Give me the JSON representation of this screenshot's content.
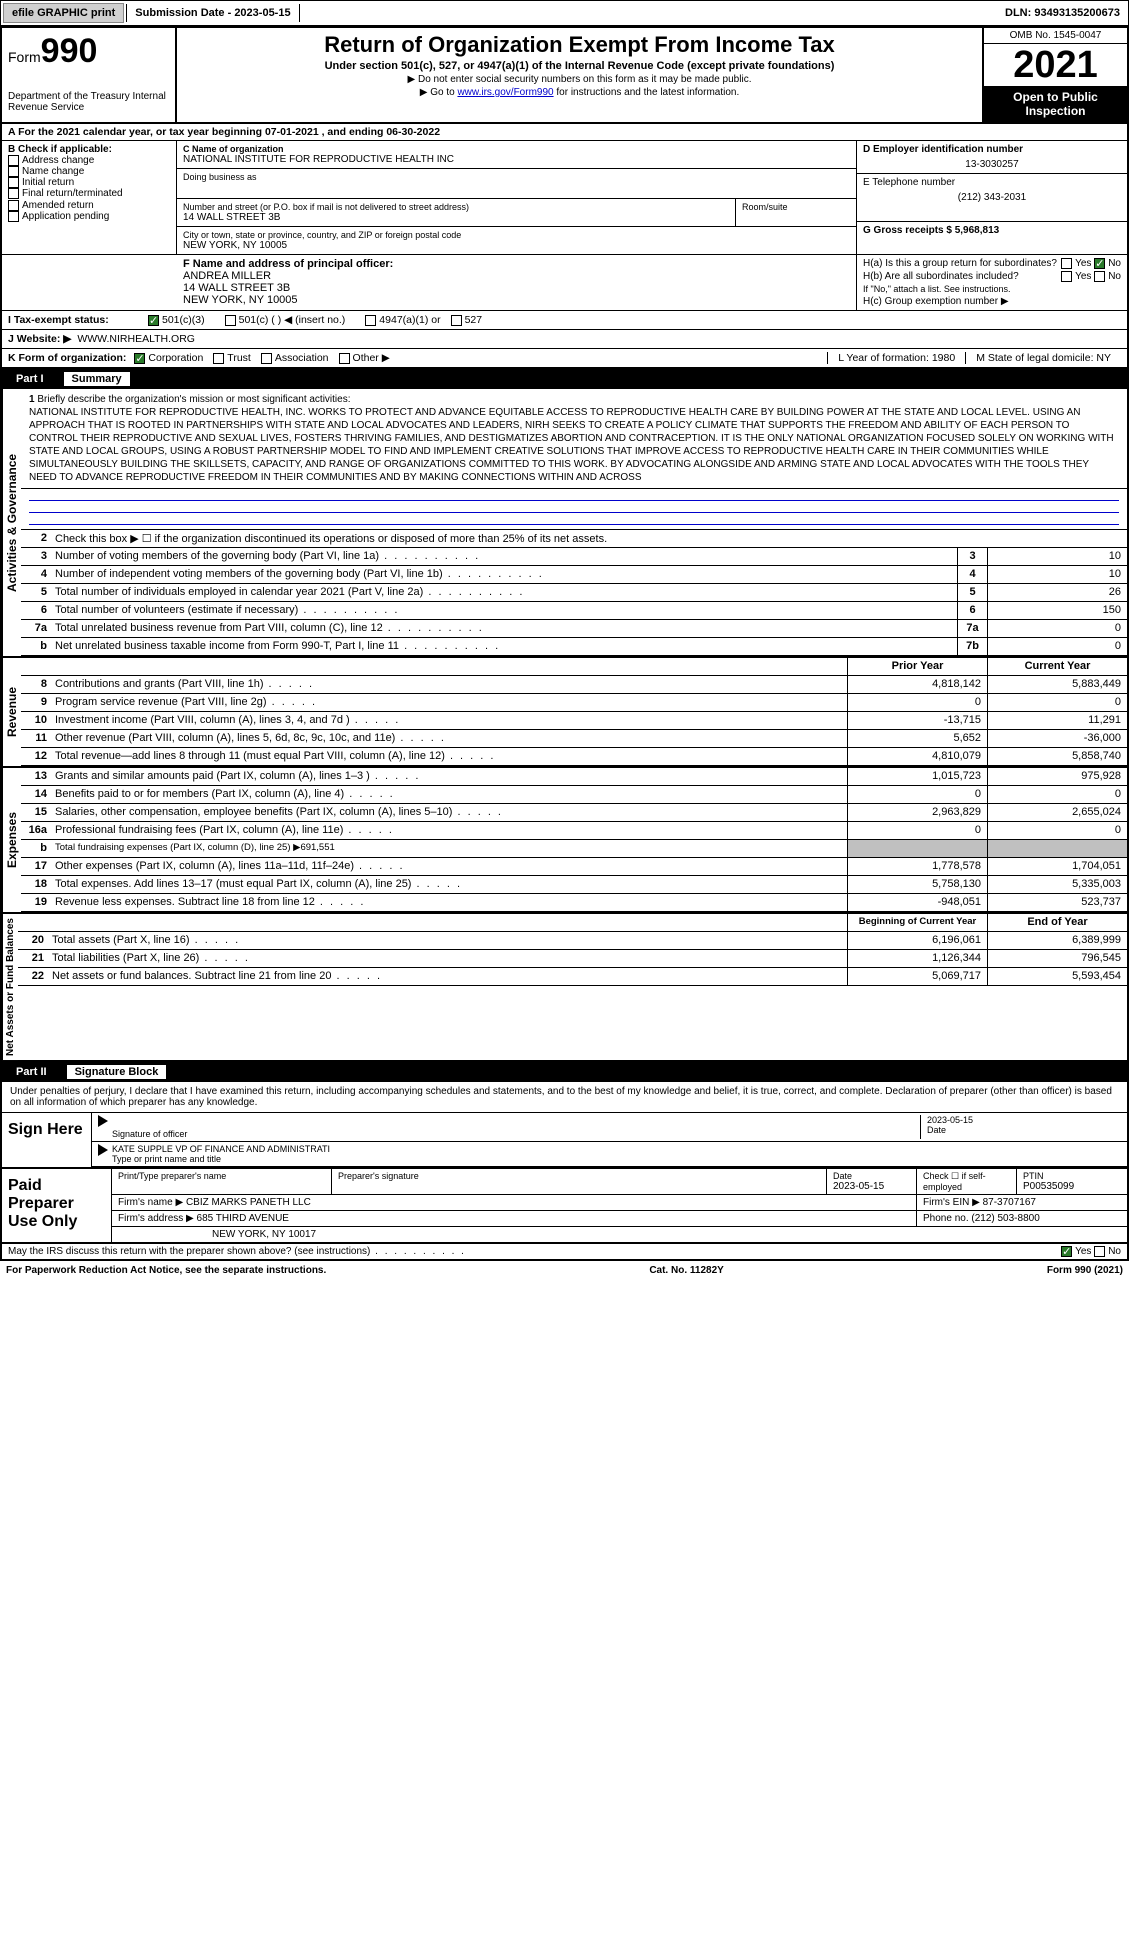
{
  "header": {
    "efile_btn": "efile GRAPHIC print",
    "submission_date_label": "Submission Date - 2023-05-15",
    "dln": "DLN: 93493135200673",
    "form_label": "Form",
    "form_num": "990",
    "title": "Return of Organization Exempt From Income Tax",
    "subtitle": "Under section 501(c), 527, or 4947(a)(1) of the Internal Revenue Code (except private foundations)",
    "note1": "▶ Do not enter social security numbers on this form as it may be made public.",
    "note2_pre": "▶ Go to ",
    "note2_link": "www.irs.gov/Form990",
    "note2_post": " for instructions and the latest information.",
    "omb": "OMB No. 1545-0047",
    "year": "2021",
    "inspection": "Open to Public Inspection",
    "dept": "Department of the Treasury Internal Revenue Service"
  },
  "section_a": {
    "tax_year": "A For the 2021 calendar year, or tax year beginning 07-01-2021   , and ending 06-30-2022",
    "b_label": "B Check if applicable:",
    "b_items": [
      "Address change",
      "Name change",
      "Initial return",
      "Final return/terminated",
      "Amended return",
      "Application pending"
    ],
    "c_label": "C Name of organization",
    "c_name": "NATIONAL INSTITUTE FOR REPRODUCTIVE HEALTH INC",
    "dba_label": "Doing business as",
    "addr_label": "Number and street (or P.O. box if mail is not delivered to street address)",
    "addr": "14 WALL STREET 3B",
    "room_label": "Room/suite",
    "city_label": "City or town, state or province, country, and ZIP or foreign postal code",
    "city": "NEW YORK, NY  10005",
    "d_label": "D Employer identification number",
    "d_ein": "13-3030257",
    "e_label": "E Telephone number",
    "e_phone": "(212) 343-2031",
    "g_label": "G Gross receipts $ 5,968,813",
    "f_label": "F  Name and address of principal officer:",
    "f_name": "ANDREA MILLER",
    "f_addr1": "14 WALL STREET 3B",
    "f_addr2": "NEW YORK, NY  10005",
    "ha_label": "H(a)  Is this a group return for subordinates?",
    "hb_label": "H(b)  Are all subordinates included?",
    "hb_note": "If \"No,\" attach a list. See instructions.",
    "hc_label": "H(c)  Group exemption number ▶",
    "yes": "Yes",
    "no": "No"
  },
  "exempt": {
    "i_label": "I  Tax-exempt status:",
    "opt1": "501(c)(3)",
    "opt2": "501(c) (  ) ◀ (insert no.)",
    "opt3": "4947(a)(1) or",
    "opt4": "527"
  },
  "website": {
    "j_label": "J Website: ▶",
    "url": "WWW.NIRHEALTH.ORG"
  },
  "korg": {
    "k_label": "K Form of organization:",
    "opts": [
      "Corporation",
      "Trust",
      "Association",
      "Other ▶"
    ],
    "l_label": "L Year of formation: 1980",
    "m_label": "M State of legal domicile: NY"
  },
  "part1": {
    "header": "Part I",
    "title": "Summary",
    "side_gov": "Activities & Governance",
    "side_rev": "Revenue",
    "side_exp": "Expenses",
    "side_net": "Net Assets or Fund Balances",
    "line1_label": "1",
    "line1_text": "Briefly describe the organization's mission or most significant activities:",
    "mission": "NATIONAL INSTITUTE FOR REPRODUCTIVE HEALTH, INC. WORKS TO PROTECT AND ADVANCE EQUITABLE ACCESS TO REPRODUCTIVE HEALTH CARE BY BUILDING POWER AT THE STATE AND LOCAL LEVEL. USING AN APPROACH THAT IS ROOTED IN PARTNERSHIPS WITH STATE AND LOCAL ADVOCATES AND LEADERS, NIRH SEEKS TO CREATE A POLICY CLIMATE THAT SUPPORTS THE FREEDOM AND ABILITY OF EACH PERSON TO CONTROL THEIR REPRODUCTIVE AND SEXUAL LIVES, FOSTERS THRIVING FAMILIES, AND DESTIGMATIZES ABORTION AND CONTRACEPTION. IT IS THE ONLY NATIONAL ORGANIZATION FOCUSED SOLELY ON WORKING WITH STATE AND LOCAL GROUPS, USING A ROBUST PARTNERSHIP MODEL TO FIND AND IMPLEMENT CREATIVE SOLUTIONS THAT IMPROVE ACCESS TO REPRODUCTIVE HEALTH CARE IN THEIR COMMUNITIES WHILE SIMULTANEOUSLY BUILDING THE SKILLSETS, CAPACITY, AND RANGE OF ORGANIZATIONS COMMITTED TO THIS WORK. BY ADVOCATING ALONGSIDE AND ARMING STATE AND LOCAL ADVOCATES WITH THE TOOLS THEY NEED TO ADVANCE REPRODUCTIVE FREEDOM IN THEIR COMMUNITIES AND BY MAKING CONNECTIONS WITHIN AND ACROSS",
    "line2": "Check this box ▶ ☐ if the organization discontinued its operations or disposed of more than 25% of its net assets.",
    "rows_gov": [
      {
        "num": "3",
        "text": "Number of voting members of the governing body (Part VI, line 1a)",
        "box": "3",
        "val": "10"
      },
      {
        "num": "4",
        "text": "Number of independent voting members of the governing body (Part VI, line 1b)",
        "box": "4",
        "val": "10"
      },
      {
        "num": "5",
        "text": "Total number of individuals employed in calendar year 2021 (Part V, line 2a)",
        "box": "5",
        "val": "26"
      },
      {
        "num": "6",
        "text": "Total number of volunteers (estimate if necessary)",
        "box": "6",
        "val": "150"
      },
      {
        "num": "7a",
        "text": "Total unrelated business revenue from Part VIII, column (C), line 12",
        "box": "7a",
        "val": "0"
      },
      {
        "num": "b",
        "text": "Net unrelated business taxable income from Form 990-T, Part I, line 11",
        "box": "7b",
        "val": "0"
      }
    ],
    "col_prior": "Prior Year",
    "col_current": "Current Year",
    "rows_rev": [
      {
        "num": "8",
        "text": "Contributions and grants (Part VIII, line 1h)",
        "prior": "4,818,142",
        "curr": "5,883,449"
      },
      {
        "num": "9",
        "text": "Program service revenue (Part VIII, line 2g)",
        "prior": "0",
        "curr": "0"
      },
      {
        "num": "10",
        "text": "Investment income (Part VIII, column (A), lines 3, 4, and 7d )",
        "prior": "-13,715",
        "curr": "11,291"
      },
      {
        "num": "11",
        "text": "Other revenue (Part VIII, column (A), lines 5, 6d, 8c, 9c, 10c, and 11e)",
        "prior": "5,652",
        "curr": "-36,000"
      },
      {
        "num": "12",
        "text": "Total revenue—add lines 8 through 11 (must equal Part VIII, column (A), line 12)",
        "prior": "4,810,079",
        "curr": "5,858,740"
      }
    ],
    "rows_exp": [
      {
        "num": "13",
        "text": "Grants and similar amounts paid (Part IX, column (A), lines 1–3 )",
        "prior": "1,015,723",
        "curr": "975,928"
      },
      {
        "num": "14",
        "text": "Benefits paid to or for members (Part IX, column (A), line 4)",
        "prior": "0",
        "curr": "0"
      },
      {
        "num": "15",
        "text": "Salaries, other compensation, employee benefits (Part IX, column (A), lines 5–10)",
        "prior": "2,963,829",
        "curr": "2,655,024"
      },
      {
        "num": "16a",
        "text": "Professional fundraising fees (Part IX, column (A), line 11e)",
        "prior": "0",
        "curr": "0"
      }
    ],
    "line16b": "Total fundraising expenses (Part IX, column (D), line 25) ▶691,551",
    "rows_exp2": [
      {
        "num": "17",
        "text": "Other expenses (Part IX, column (A), lines 11a–11d, 11f–24e)",
        "prior": "1,778,578",
        "curr": "1,704,051"
      },
      {
        "num": "18",
        "text": "Total expenses. Add lines 13–17 (must equal Part IX, column (A), line 25)",
        "prior": "5,758,130",
        "curr": "5,335,003"
      },
      {
        "num": "19",
        "text": "Revenue less expenses. Subtract line 18 from line 12",
        "prior": "-948,051",
        "curr": "523,737"
      }
    ],
    "col_begin": "Beginning of Current Year",
    "col_end": "End of Year",
    "rows_net": [
      {
        "num": "20",
        "text": "Total assets (Part X, line 16)",
        "prior": "6,196,061",
        "curr": "6,389,999"
      },
      {
        "num": "21",
        "text": "Total liabilities (Part X, line 26)",
        "prior": "1,126,344",
        "curr": "796,545"
      },
      {
        "num": "22",
        "text": "Net assets or fund balances. Subtract line 21 from line 20",
        "prior": "5,069,717",
        "curr": "5,593,454"
      }
    ]
  },
  "part2": {
    "header": "Part II",
    "title": "Signature Block",
    "penalty": "Under penalties of perjury, I declare that I have examined this return, including accompanying schedules and statements, and to the best of my knowledge and belief, it is true, correct, and complete. Declaration of preparer (other than officer) is based on all information of which preparer has any knowledge.",
    "sign_here": "Sign Here",
    "sig_officer": "Signature of officer",
    "sig_date": "2023-05-15",
    "date_label": "Date",
    "officer_name": "KATE SUPPLE VP OF FINANCE AND ADMINISTRATI",
    "type_name": "Type or print name and title",
    "paid_prep": "Paid Preparer Use Only",
    "print_name_label": "Print/Type preparer's name",
    "prep_sig_label": "Preparer's signature",
    "prep_date_label": "Date",
    "prep_date": "2023-05-15",
    "check_self": "Check ☐ if self-employed",
    "ptin_label": "PTIN",
    "ptin": "P00535099",
    "firm_name_label": "Firm's name    ▶",
    "firm_name": "CBIZ MARKS PANETH LLC",
    "firm_ein_label": "Firm's EIN ▶ 87-3707167",
    "firm_addr_label": "Firm's address ▶",
    "firm_addr1": "685 THIRD AVENUE",
    "firm_addr2": "NEW YORK, NY  10017",
    "phone_label": "Phone no. (212) 503-8800",
    "discuss": "May the IRS discuss this return with the preparer shown above? (see instructions)",
    "paperwork": "For Paperwork Reduction Act Notice, see the separate instructions.",
    "cat": "Cat. No. 11282Y",
    "form_foot": "Form 990 (2021)"
  }
}
